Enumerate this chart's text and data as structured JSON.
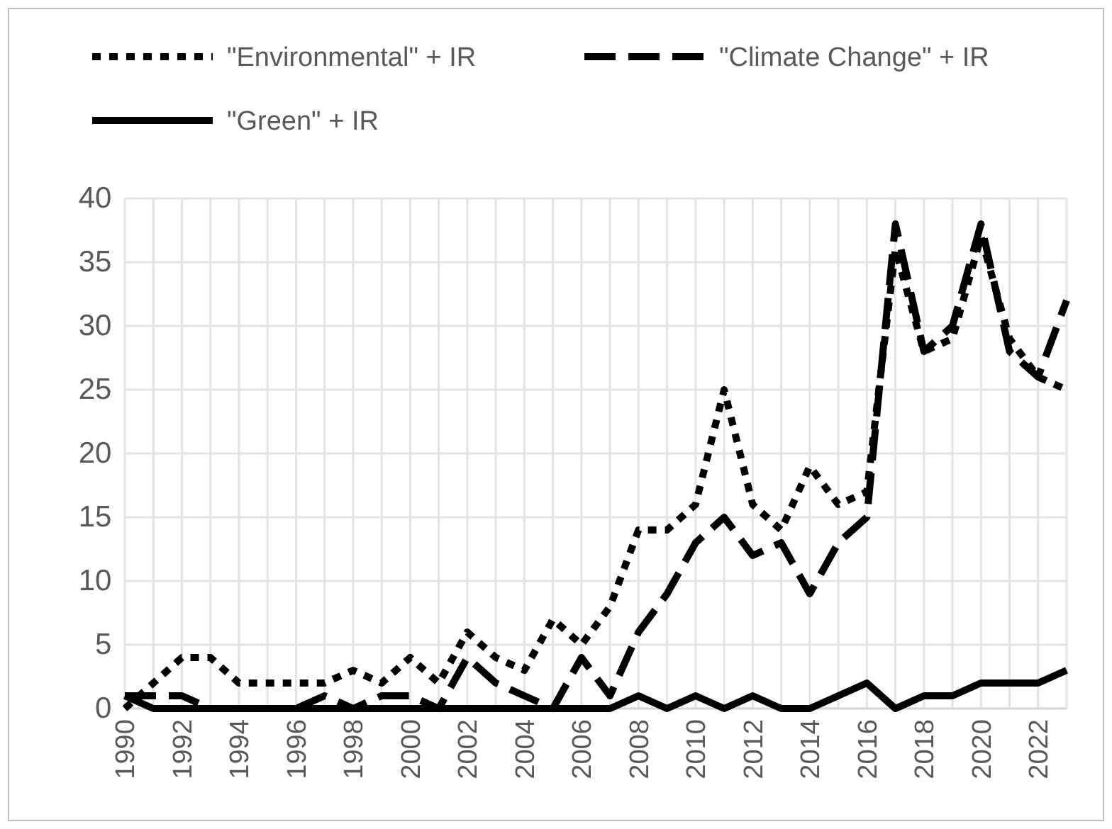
{
  "chart_data": {
    "type": "line",
    "x": [
      1990,
      1991,
      1992,
      1993,
      1994,
      1995,
      1996,
      1997,
      1998,
      1999,
      2000,
      2001,
      2002,
      2003,
      2004,
      2005,
      2006,
      2007,
      2008,
      2009,
      2010,
      2011,
      2012,
      2013,
      2014,
      2015,
      2016,
      2017,
      2018,
      2019,
      2020,
      2021,
      2022,
      2023
    ],
    "series": [
      {
        "name": "\"Environmental\" + IR",
        "color": "#000000",
        "line_style": "dotted",
        "values": [
          0,
          2,
          4,
          4,
          2,
          2,
          2,
          2,
          3,
          2,
          4,
          2,
          6,
          4,
          3,
          7,
          5,
          8,
          14,
          14,
          16,
          25,
          16,
          14,
          19,
          16,
          17,
          36,
          28,
          29,
          37,
          29,
          26,
          25
        ]
      },
      {
        "name": "\"Climate Change\" + IR",
        "color": "#000000",
        "line_style": "dashed",
        "values": [
          1,
          1,
          1,
          0,
          0,
          0,
          0,
          1,
          0,
          1,
          1,
          0,
          4,
          2,
          1,
          0,
          4,
          1,
          6,
          9,
          13,
          15,
          12,
          13,
          9,
          13,
          15,
          38,
          28,
          30,
          38,
          28,
          26,
          32
        ]
      },
      {
        "name": "\"Green\" + IR",
        "color": "#000000",
        "line_style": "solid",
        "values": [
          1,
          0,
          0,
          0,
          0,
          0,
          0,
          0,
          0,
          0,
          0,
          0,
          0,
          0,
          0,
          0,
          0,
          0,
          1,
          0,
          1,
          0,
          1,
          0,
          0,
          1,
          2,
          0,
          1,
          1,
          2,
          2,
          2,
          3
        ]
      }
    ],
    "xlim": [
      1990,
      2023
    ],
    "xticks": [
      1990,
      {
        "value": 1991,
        "label": null
      },
      1992,
      {
        "value": 1993,
        "label": null
      },
      1994,
      {
        "value": 1995,
        "label": null
      },
      1996,
      {
        "value": 1997,
        "label": null
      },
      1998,
      {
        "value": 1999,
        "label": null
      },
      2000,
      {
        "value": 2001,
        "label": null
      },
      2002,
      {
        "value": 2003,
        "label": null
      },
      2004,
      {
        "value": 2005,
        "label": null
      },
      2006,
      {
        "value": 2007,
        "label": null
      },
      2008,
      {
        "value": 2009,
        "label": null
      },
      2010,
      {
        "value": 2011,
        "label": null
      },
      2012,
      {
        "value": 2013,
        "label": null
      },
      2014,
      {
        "value": 2015,
        "label": null
      },
      2016,
      {
        "value": 2017,
        "label": null
      },
      2018,
      {
        "value": 2019,
        "label": null
      },
      2020,
      {
        "value": 2021,
        "label": null
      },
      2022,
      {
        "value": 2023,
        "label": null
      }
    ],
    "ylim": [
      0,
      40
    ],
    "yticks": [
      0,
      5,
      10,
      15,
      20,
      25,
      30,
      35,
      40
    ],
    "grid": true,
    "legend": "top"
  }
}
